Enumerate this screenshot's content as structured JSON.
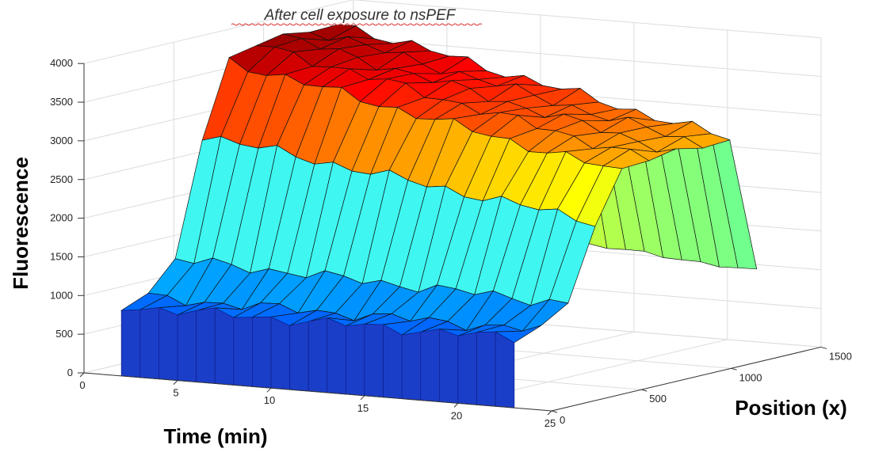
{
  "chart_data": {
    "type": "surface",
    "title": "After cell exposure to nsPEF",
    "xlabel": "Time (min)",
    "ylabel": "Position (x)",
    "zlabel": "Fluorescence",
    "xlim": [
      0,
      25
    ],
    "ylim": [
      0,
      1500
    ],
    "zlim": [
      0,
      4000
    ],
    "x_ticks": [
      "0",
      "5",
      "10",
      "15",
      "20",
      "25"
    ],
    "y_ticks": [
      "0",
      "500",
      "1000",
      "1500"
    ],
    "z_ticks": [
      "0",
      "500",
      "1000",
      "1500",
      "2000",
      "2500",
      "3000",
      "3500",
      "4000"
    ],
    "grid": true,
    "colormap": "jet",
    "highlight_color": "#3ff7f0",
    "time_min": [
      2,
      3,
      4,
      5,
      6,
      7,
      8,
      9,
      10,
      11,
      12,
      13,
      14,
      15,
      16,
      17,
      18,
      19,
      20,
      21,
      22,
      23
    ],
    "position_x": [
      0,
      150,
      300,
      450,
      600,
      750,
      900,
      1050,
      1200,
      1350
    ],
    "fluorescence_start": 900,
    "peak_fluorescence": 3900,
    "highlight_row_fluorescence": 1700
  }
}
